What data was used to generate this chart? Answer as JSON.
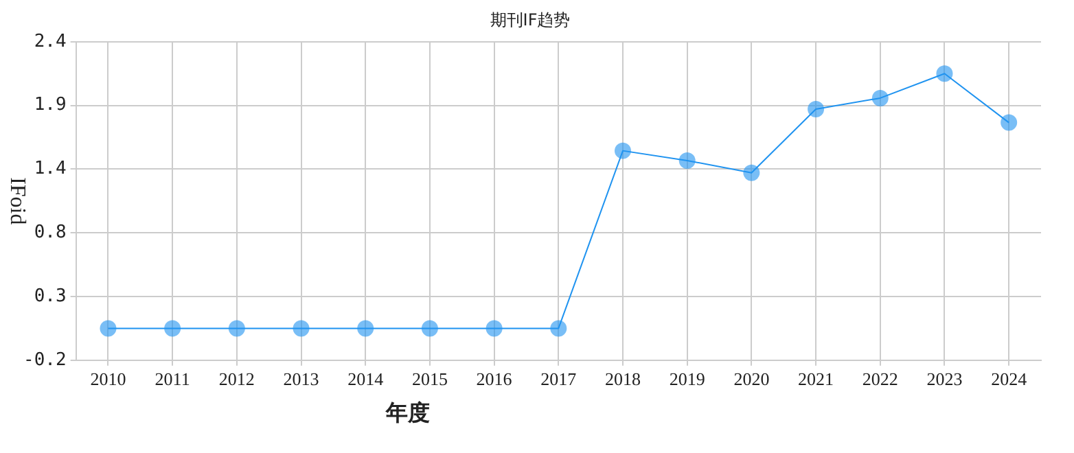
{
  "chart_data": {
    "type": "line",
    "title": "期刊IF趋势",
    "xlabel": "年度",
    "ylabel": "IFoid",
    "categories": [
      "2010",
      "2011",
      "2012",
      "2013",
      "2014",
      "2015",
      "2016",
      "2017",
      "2018",
      "2019",
      "2020",
      "2021",
      "2022",
      "2023",
      "2024"
    ],
    "series": [
      {
        "color": "#1f93f0",
        "values": [
          0.06,
          0.06,
          0.06,
          0.06,
          0.06,
          0.06,
          0.06,
          0.06,
          1.51,
          1.43,
          1.33,
          1.85,
          1.94,
          2.14,
          1.74
        ]
      }
    ],
    "ylim": [
      -0.2,
      2.4
    ],
    "yticks": [
      -0.2,
      {
        "value": 0.32,
        "label": "0.3"
      },
      {
        "value": 0.84,
        "label": "0.8"
      },
      {
        "value": 1.36,
        "label": "1.4"
      },
      {
        "value": 1.88,
        "label": "1.9"
      },
      2.4
    ],
    "grid": true,
    "legend": false,
    "marker": "circle",
    "line_style": "solid"
  }
}
